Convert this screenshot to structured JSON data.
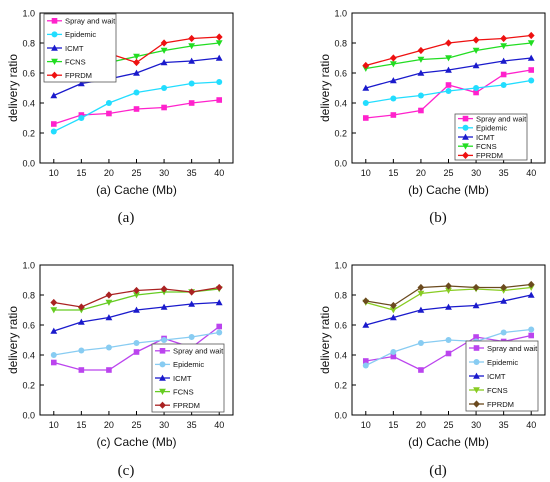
{
  "figure": {
    "panels": [
      {
        "caption": "(a)"
      },
      {
        "caption": "(b)"
      },
      {
        "caption": "(c)"
      },
      {
        "caption": "(d)"
      }
    ]
  },
  "chart_data": [
    {
      "type": "line",
      "title": "",
      "xlabel": "(a) Cache (Mb)",
      "ylabel": "delivery ratio",
      "x": [
        10,
        15,
        20,
        25,
        30,
        35,
        40
      ],
      "xlim": [
        7.5,
        42.5
      ],
      "ylim": [
        0.0,
        1.0
      ],
      "yticks": [
        "0.0",
        "0.2",
        "0.4",
        "0.6",
        "0.8",
        "1.0"
      ],
      "grid": false,
      "legend_position": "top-left",
      "series": [
        {
          "name": "Spray and wait",
          "color": "#ff22cc",
          "marker": "square",
          "values": [
            0.26,
            0.32,
            0.33,
            0.36,
            0.37,
            0.4,
            0.42
          ]
        },
        {
          "name": "Epidemic",
          "color": "#22ddff",
          "marker": "circle",
          "values": [
            0.21,
            0.3,
            0.4,
            0.47,
            0.5,
            0.53,
            0.54
          ]
        },
        {
          "name": "ICMT",
          "color": "#1a1acc",
          "marker": "triangle",
          "values": [
            0.45,
            0.53,
            0.56,
            0.6,
            0.67,
            0.68,
            0.7
          ]
        },
        {
          "name": "FCNS",
          "color": "#22dd22",
          "marker": "triangle-down",
          "values": [
            0.6,
            0.63,
            0.67,
            0.71,
            0.75,
            0.78,
            0.8
          ]
        },
        {
          "name": "FPRDM",
          "color": "#ee1111",
          "marker": "diamond",
          "values": [
            0.65,
            0.7,
            0.73,
            0.67,
            0.8,
            0.83,
            0.84
          ]
        }
      ]
    },
    {
      "type": "line",
      "title": "",
      "xlabel": "(b) Cache (Mb)",
      "ylabel": "delivery ratio",
      "x": [
        10,
        15,
        20,
        25,
        30,
        35,
        40
      ],
      "xlim": [
        7.5,
        42.5
      ],
      "ylim": [
        0.0,
        1.0
      ],
      "yticks": [
        "0.0",
        "0.2",
        "0.4",
        "0.6",
        "0.8",
        "1.0"
      ],
      "grid": false,
      "legend_position": "bottom-right",
      "series": [
        {
          "name": "Spray and wait",
          "color": "#ff22cc",
          "marker": "square",
          "values": [
            0.3,
            0.32,
            0.35,
            0.52,
            0.47,
            0.59,
            0.62
          ]
        },
        {
          "name": "Epidemic",
          "color": "#22ddff",
          "marker": "circle",
          "values": [
            0.4,
            0.43,
            0.45,
            0.48,
            0.5,
            0.52,
            0.55
          ]
        },
        {
          "name": "ICMT",
          "color": "#1a1acc",
          "marker": "triangle",
          "values": [
            0.5,
            0.55,
            0.6,
            0.62,
            0.65,
            0.68,
            0.7
          ]
        },
        {
          "name": "FCNS",
          "color": "#22dd22",
          "marker": "triangle-down",
          "values": [
            0.63,
            0.66,
            0.69,
            0.7,
            0.75,
            0.78,
            0.8
          ]
        },
        {
          "name": "FPRDM",
          "color": "#ee1111",
          "marker": "diamond",
          "values": [
            0.65,
            0.7,
            0.75,
            0.8,
            0.82,
            0.83,
            0.85
          ]
        }
      ]
    },
    {
      "type": "line",
      "title": "",
      "xlabel": "(c) Cache (Mb)",
      "ylabel": "delivery ratio",
      "x": [
        10,
        15,
        20,
        25,
        30,
        35,
        40
      ],
      "xlim": [
        7.5,
        42.5
      ],
      "ylim": [
        0.0,
        1.0
      ],
      "yticks": [
        "0.0",
        "0.2",
        "0.4",
        "0.6",
        "0.8",
        "1.0"
      ],
      "grid": false,
      "legend_position": "bottom-right",
      "series": [
        {
          "name": "Spray and wait",
          "color": "#bb44ee",
          "marker": "square",
          "values": [
            0.35,
            0.3,
            0.3,
            0.42,
            0.51,
            0.45,
            0.59
          ]
        },
        {
          "name": "Epidemic",
          "color": "#88ccf2",
          "marker": "circle",
          "values": [
            0.4,
            0.43,
            0.45,
            0.48,
            0.5,
            0.52,
            0.55
          ]
        },
        {
          "name": "ICMT",
          "color": "#1a1acc",
          "marker": "triangle",
          "values": [
            0.56,
            0.62,
            0.65,
            0.7,
            0.72,
            0.74,
            0.75
          ]
        },
        {
          "name": "FCNS",
          "color": "#66cc22",
          "marker": "triangle-down",
          "values": [
            0.7,
            0.7,
            0.75,
            0.8,
            0.82,
            0.82,
            0.84
          ]
        },
        {
          "name": "FPRDM",
          "color": "#aa2222",
          "marker": "diamond",
          "values": [
            0.75,
            0.72,
            0.8,
            0.83,
            0.84,
            0.82,
            0.85
          ]
        }
      ]
    },
    {
      "type": "line",
      "title": "",
      "xlabel": "(d) Cache (Mb)",
      "ylabel": "delivery ratio",
      "x": [
        10,
        15,
        20,
        25,
        30,
        35,
        40
      ],
      "xlim": [
        7.5,
        42.5
      ],
      "ylim": [
        0.0,
        1.0
      ],
      "yticks": [
        "0.0",
        "0.2",
        "0.4",
        "0.6",
        "0.8",
        "1.0"
      ],
      "grid": false,
      "legend_position": "bottom-right",
      "series": [
        {
          "name": "Spray and wait",
          "color": "#bb44ee",
          "marker": "square",
          "values": [
            0.36,
            0.39,
            0.3,
            0.41,
            0.52,
            0.49,
            0.53
          ]
        },
        {
          "name": "Epidemic",
          "color": "#88ccf2",
          "marker": "circle",
          "values": [
            0.33,
            0.42,
            0.48,
            0.5,
            0.49,
            0.55,
            0.57
          ]
        },
        {
          "name": "ICMT",
          "color": "#1a1acc",
          "marker": "triangle",
          "values": [
            0.6,
            0.65,
            0.7,
            0.72,
            0.73,
            0.76,
            0.8
          ]
        },
        {
          "name": "FCNS",
          "color": "#88cc22",
          "marker": "triangle-down",
          "values": [
            0.75,
            0.7,
            0.81,
            0.83,
            0.84,
            0.83,
            0.85
          ]
        },
        {
          "name": "FPRDM",
          "color": "#6b4a1e",
          "marker": "diamond",
          "values": [
            0.76,
            0.73,
            0.85,
            0.86,
            0.85,
            0.85,
            0.87
          ]
        }
      ]
    }
  ]
}
